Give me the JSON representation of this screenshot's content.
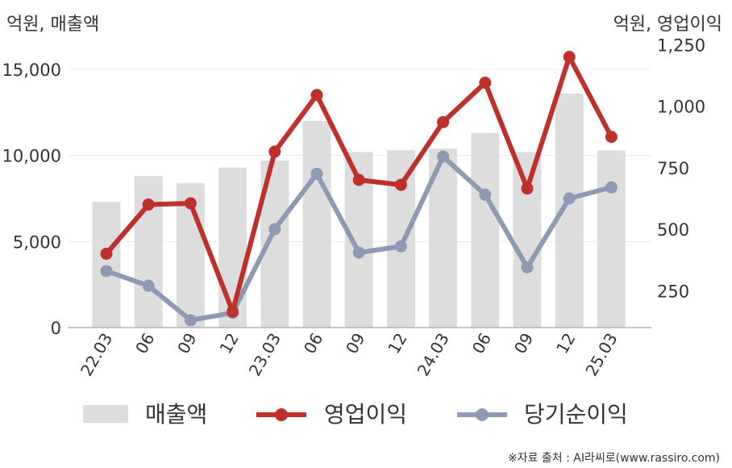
{
  "chart_data": {
    "type": "bar",
    "left_unit_label": "억원, 매출액",
    "right_unit_label": "억원, 영업이익",
    "categories": [
      "22.03",
      "06",
      "09",
      "12",
      "23.03",
      "06",
      "09",
      "12",
      "24.03",
      "06",
      "09",
      "12",
      "25.03"
    ],
    "y_left_ticks": [
      "0",
      "5,000",
      "10,000",
      "15,000"
    ],
    "y_right_ticks": [
      "250",
      "500",
      "750",
      "1,000",
      "1,250"
    ],
    "y_left_range": [
      0,
      15000
    ],
    "y_right_range": [
      100,
      1300
    ],
    "series": [
      {
        "name": "매출액",
        "kind": "bar",
        "axis": "left",
        "color": "#dddddd",
        "values": [
          7300,
          8800,
          8400,
          9300,
          9700,
          12000,
          10200,
          10300,
          10400,
          11300,
          10200,
          13600,
          10300
        ]
      },
      {
        "name": "영업이익",
        "kind": "line",
        "axis": "right",
        "color": "#c0302b",
        "values": [
          400,
          600,
          605,
          165,
          815,
          1045,
          700,
          680,
          935,
          1095,
          665,
          1200,
          875
        ]
      },
      {
        "name": "당기순이익",
        "kind": "line",
        "axis": "right",
        "color": "#8e9ab3",
        "values": [
          330,
          270,
          130,
          160,
          500,
          725,
          405,
          430,
          795,
          640,
          345,
          625,
          670
        ]
      }
    ]
  },
  "source_text": "※자료 출처 : AI라씨로(www.rassiro.com)"
}
